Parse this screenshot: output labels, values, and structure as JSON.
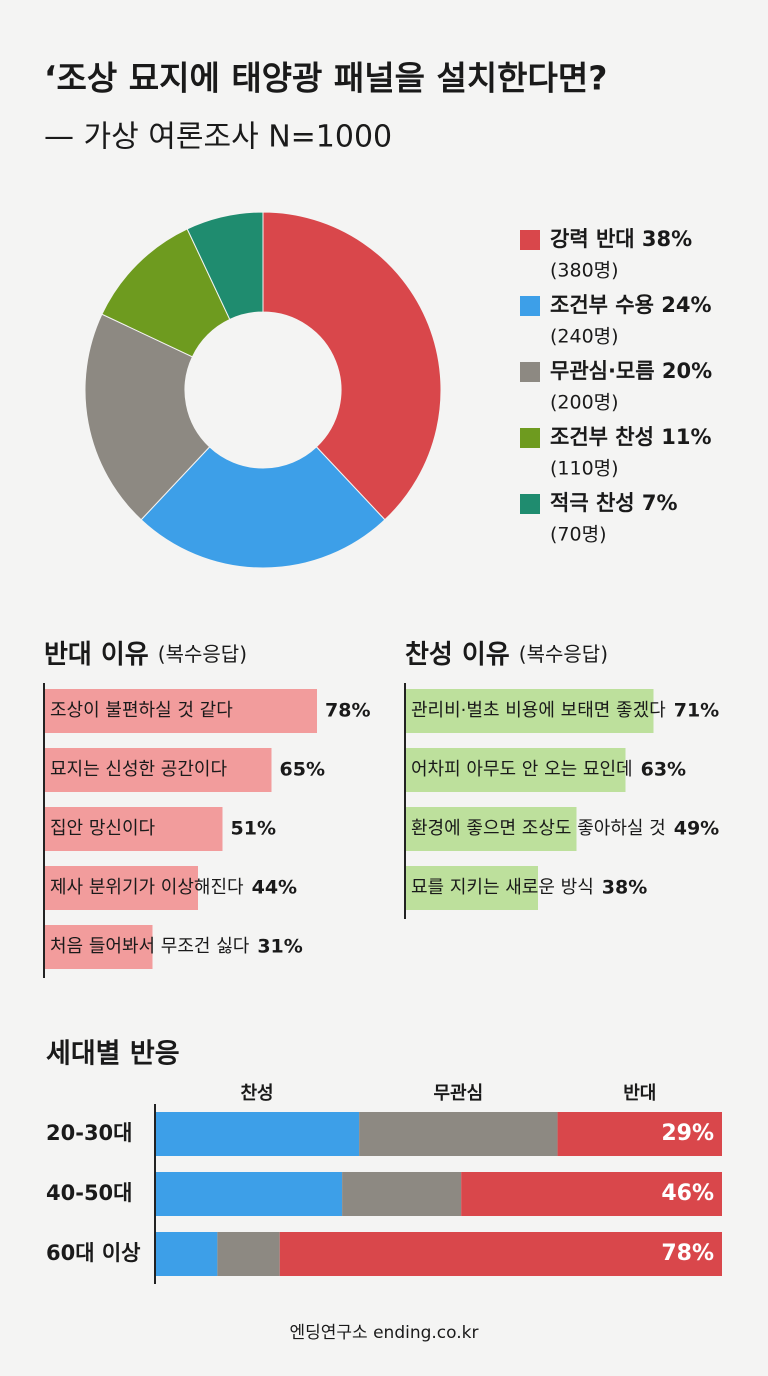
{
  "title": "‘조상 묘지에 태양광 패널을 설치한다면?",
  "subtitle": "— 가상 여론조사 N=1000",
  "footer": "엔딩연구소 ending.co.kr",
  "chart_data": [
    {
      "type": "pie",
      "donut": true,
      "categories": [
        "강력 반대",
        "조건부 수용",
        "무관심·모름",
        "조건부 찬성",
        "적극 찬성"
      ],
      "values": [
        38,
        24,
        20,
        11,
        7
      ],
      "value_labels": [
        "38%",
        "24%",
        "20%",
        "11%",
        "7%"
      ],
      "counts": [
        380,
        240,
        200,
        110,
        70
      ],
      "count_labels": [
        "(380명)",
        "(240명)",
        "(200명)",
        "(110명)",
        "(70명)"
      ],
      "colors": [
        "#d9474b",
        "#3d9fe8",
        "#8d8982",
        "#6e9b1f",
        "#1f8c6f"
      ]
    },
    {
      "type": "hbar",
      "title": "반대 이유",
      "subtitle": "(복수응답)",
      "categories": [
        "조상이 불편하실 것 같다",
        "묘지는 신성한 공간이다",
        "집안 망신이다",
        "제사 분위기가 이상해진다",
        "처음 들어봐서 무조건 싫다"
      ],
      "values": [
        78,
        65,
        51,
        44,
        31
      ],
      "value_labels": [
        "78%",
        "65%",
        "51%",
        "44%",
        "31%"
      ],
      "xlim": [
        0,
        100
      ],
      "color": "#f29c9c"
    },
    {
      "type": "hbar",
      "title": "찬성 이유",
      "subtitle": "(복수응답)",
      "categories": [
        "관리비·벌초 비용에 보태면 좋겠다",
        "어차피 아무도 안 오는 묘인데",
        "환경에 좋으면 조상도 좋아하실 것",
        "묘를 지키는 새로운 방식"
      ],
      "values": [
        71,
        63,
        49,
        38
      ],
      "value_labels": [
        "71%",
        "63%",
        "49%",
        "38%"
      ],
      "xlim": [
        0,
        100
      ],
      "color": "#bde09c"
    },
    {
      "type": "stacked_bar",
      "title": "세대별 반응",
      "categories": [
        "20-30대",
        "40-50대",
        "60대 이상"
      ],
      "xlim": [
        0,
        100
      ],
      "series": [
        {
          "name": "찬성",
          "color": "#3d9fe8",
          "name_color": "#1c78c4",
          "values": [
            36,
            33,
            11
          ]
        },
        {
          "name": "무관심",
          "color": "#8d8982",
          "name_color": "#444444",
          "values": [
            35,
            21,
            11
          ]
        },
        {
          "name": "반대",
          "color": "#d9474b",
          "name_color": "#b52a2e",
          "values": [
            29,
            46,
            78
          ],
          "value_labels": [
            "29%",
            "46%",
            "78%"
          ]
        }
      ]
    }
  ]
}
